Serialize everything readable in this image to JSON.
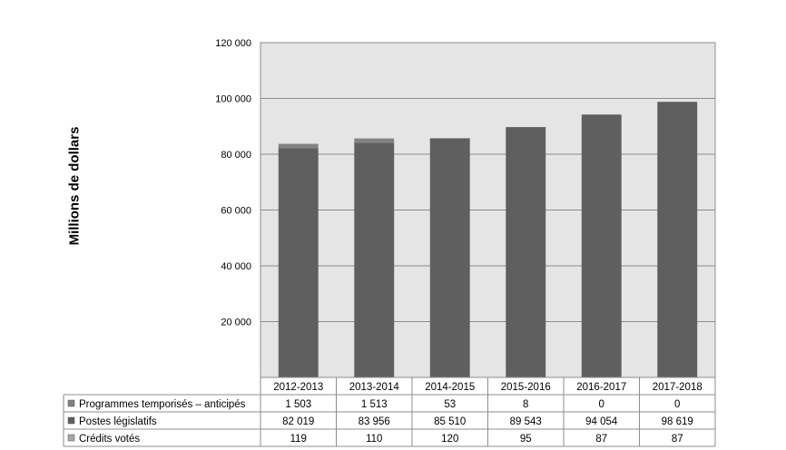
{
  "chart_data": {
    "type": "bar",
    "stacked": true,
    "ylabel": "Millions  de dollars",
    "ylim": [
      0,
      120000
    ],
    "yticks": [
      {
        "value": 20000,
        "label": "20 000"
      },
      {
        "value": 40000,
        "label": "40 000"
      },
      {
        "value": 60000,
        "label": "60 000"
      },
      {
        "value": 80000,
        "label": "80 000"
      },
      {
        "value": 100000,
        "label": "100 000"
      },
      {
        "value": 120000,
        "label": "120 000"
      }
    ],
    "grid": true,
    "categories": [
      "2012-2013",
      "2013-2014",
      "2014-2015",
      "2015-2016",
      "2016-2017",
      "2017-2018"
    ],
    "series": [
      {
        "name": "Crédits votés",
        "color": "#a6a6a6",
        "values": [
          119,
          110,
          120,
          95,
          87,
          87
        ],
        "labels": [
          "119",
          "110",
          "120",
          "95",
          "87",
          "87"
        ]
      },
      {
        "name": "Postes législatifs",
        "color": "#5f5f5f",
        "values": [
          82019,
          83956,
          85510,
          89543,
          94054,
          98619
        ],
        "labels": [
          "82 019",
          "83 956",
          "85 510",
          "89 543",
          "94 054",
          "98 619"
        ]
      },
      {
        "name": "Programmes temporisés – anticipés",
        "color": "#828282",
        "values": [
          1503,
          1513,
          53,
          8,
          0,
          0
        ],
        "labels": [
          "1 503",
          "1 513",
          "53",
          "8",
          "0",
          "0"
        ]
      }
    ],
    "table_row_order": [
      2,
      1,
      0
    ]
  }
}
